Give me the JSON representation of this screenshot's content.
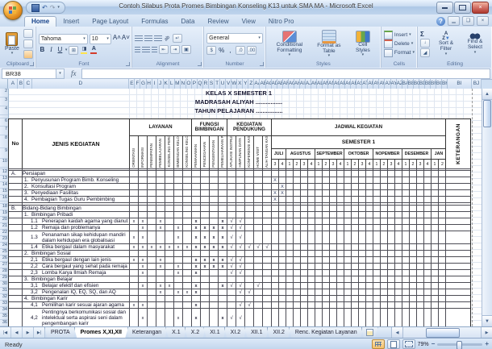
{
  "colors": {
    "close_red": "#cf6a60",
    "grid_line": "#dfe6f0",
    "scroll_thumb_border": "#7e97bb",
    "selection_orange": "#f5c06a"
  },
  "window": {
    "title": "Contoh Silabus Prota Promes Bimbingan Konseling  K13 untuk SMA MA  -  Microsoft Excel"
  },
  "ribbon": {
    "tabs": [
      {
        "label": "Home",
        "active": true
      },
      {
        "label": "Insert"
      },
      {
        "label": "Page Layout"
      },
      {
        "label": "Formulas"
      },
      {
        "label": "Data"
      },
      {
        "label": "Review"
      },
      {
        "label": "View"
      },
      {
        "label": "Nitro Pro"
      }
    ],
    "clipboard": {
      "label": "Clipboard",
      "paste": "Paste"
    },
    "font": {
      "label": "Font",
      "family": "Tahoma",
      "size": "10",
      "bold": "B",
      "italic": "I",
      "underline": "U"
    },
    "alignment": {
      "label": "Alignment"
    },
    "number": {
      "label": "Number",
      "format": "General",
      "percent": "%",
      "comma": ","
    },
    "styles": {
      "label": "Styles",
      "conditional": "Conditional Formatting",
      "format_table": "Format as Table",
      "cell_styles": "Cell Styles"
    },
    "cells": {
      "label": "Cells",
      "insert": "Insert",
      "delete": "Delete",
      "format": "Format"
    },
    "editing": {
      "label": "Editing",
      "autosum": "Σ",
      "sort": "Sort & Filter",
      "find": "Find & Select"
    }
  },
  "formula_bar": {
    "name_box": "BR38",
    "fx": "fx"
  },
  "columns": [
    "A",
    "B",
    "C",
    "D",
    "E",
    "F",
    "G",
    "H",
    "I",
    "J",
    "K",
    "L",
    "M",
    "N",
    "O",
    "P",
    "Q",
    "R",
    "S",
    "T",
    "U",
    "V",
    "W",
    "X",
    "Y",
    "Z",
    "AA",
    "AB",
    "AC",
    "AD",
    "AE",
    "AF",
    "AG",
    "AH",
    "AI",
    "AJ",
    "AK",
    "AL",
    "AM",
    "AN",
    "AO",
    "AP",
    "AQ",
    "AR",
    "AS",
    "AT",
    "AU",
    "AV",
    "AW",
    "AX",
    "AY",
    "AZ",
    "BA",
    "BB",
    "BC",
    "BD",
    "BE",
    "BF",
    "BG",
    "BH",
    "BI",
    "BJ"
  ],
  "sheet": {
    "titles": [
      "KELAS X SEMESTER 1",
      "MADRASAH ALIYAH ................",
      "TAHUN PELAJARAN ................"
    ],
    "row_numbers": [
      "2",
      "3",
      "4",
      "5",
      "6",
      "7",
      "8",
      "9",
      "10",
      "11",
      "12",
      "13",
      "14",
      "15",
      "16",
      "17",
      "18",
      "19",
      "20",
      "21",
      "22",
      "23",
      "24",
      "25",
      "26",
      "27",
      "28",
      "29",
      "30",
      "31",
      "32",
      "33",
      "34",
      "35",
      "36",
      "37",
      "38"
    ],
    "header": {
      "no": "No",
      "jenis": "JENIS KEGIATAN",
      "layanan": {
        "label": "LAYANAN",
        "cols": [
          "ORIENTASI",
          "INFORMASI",
          "PENEMPATAN",
          "PEMBELAJARAN",
          "KONSELING PERORANGAN",
          "BIMBINGAN KELOMPOK",
          "KONSELING KELOMPOK"
        ]
      },
      "fungsi": {
        "label": "FUNGSI BIMBINGAN",
        "cols": [
          "PEMAHAMAN",
          "PENCEGAHAN",
          "PENGENTASAN",
          "PEMELIHARAAN PENGEMBANGAN"
        ]
      },
      "pendukung": {
        "label": "KEGIATAN PENDUKUNG",
        "cols": [
          "APLIKASI INSTRUMENTASI",
          "HIMPUNAN DATA",
          "KONFERENSI KASUS",
          "HOME VISIT",
          "ALIH TANGAN KASUS"
        ]
      },
      "keterangan": "KETERANGAN"
    },
    "jadwal": {
      "label": "JADWAL KEGIATAN",
      "semester": "SEMESTER 1",
      "months": [
        {
          "name": "JULI",
          "weeks": [
            "3",
            "4"
          ]
        },
        {
          "name": "AGUSTUS",
          "weeks": [
            "1",
            "2",
            "3",
            "4"
          ]
        },
        {
          "name": "SEPTEMBER",
          "weeks": [
            "1",
            "2",
            "3",
            "4"
          ]
        },
        {
          "name": "OKTOBER",
          "weeks": [
            "1",
            "2",
            "3",
            "4"
          ]
        },
        {
          "name": "NOPEMBER",
          "weeks": [
            "1",
            "2",
            "3",
            "4"
          ]
        },
        {
          "name": "DESEMBER",
          "weeks": [
            "1",
            "2",
            "3",
            "4"
          ]
        },
        {
          "name": "JAN",
          "weeks": [
            "1",
            "2"
          ]
        }
      ]
    },
    "marks": {
      "L": "x",
      "F": "x",
      "P": "√",
      "J": "X"
    },
    "rows": [
      {
        "r": 11,
        "spacer": true,
        "h": 2
      },
      {
        "r": 12,
        "no": "A.",
        "text": "Persiapan",
        "level": 0
      },
      {
        "r": 13,
        "no": "1.",
        "text": "Penyusunan Program Bimb. Konseling",
        "level": 1,
        "J": [
          1
        ]
      },
      {
        "r": 14,
        "no": "2.",
        "text": "Konsultasi Program",
        "level": 1,
        "J": [
          2
        ]
      },
      {
        "r": 15,
        "no": "3.",
        "text": "Penyediaan Fasilitas",
        "level": 1,
        "J": [
          1,
          2
        ]
      },
      {
        "r": 16,
        "no": "4.",
        "text": "Pembagian Tugas Guru Pembimbing",
        "level": 1,
        "J": [
          1
        ]
      },
      {
        "r": 17,
        "spacer": true,
        "h": 3
      },
      {
        "r": 18,
        "no": "B.",
        "text": "Bidang-Bidang Bimbingan",
        "level": 0
      },
      {
        "r": 19,
        "no": "1.",
        "text": "Bimbingan Pribadi",
        "level": 1
      },
      {
        "r": 20,
        "no": "1.1",
        "text": "Penerapan kaidah agama yang dianut",
        "level": 2,
        "L": [
          1,
          2,
          4
        ],
        "F": [
          1,
          4
        ],
        "P": [
          1,
          2
        ]
      },
      {
        "r": 21,
        "no": "1.2",
        "text": "Remaja dan problemanya",
        "level": 2,
        "L": [
          2,
          4,
          6
        ],
        "F": [
          1,
          2,
          3,
          4
        ],
        "P": [
          1,
          2
        ]
      },
      {
        "r": 22,
        "no": "1.3",
        "text": "Penanaman sikap kehidupan mandiri dalam kehidupan era globalisasi",
        "lines": 2,
        "level": 2,
        "L": [
          1,
          2,
          6
        ],
        "F": [
          1,
          2,
          3,
          4
        ],
        "P": [
          1,
          2
        ]
      },
      {
        "r": 24,
        "no": "1.4",
        "text": "Etika bergaul dalam masyarakat",
        "level": 2,
        "L": [
          1,
          2,
          3,
          4,
          5,
          6,
          7
        ],
        "F": [
          1,
          2,
          3,
          4
        ],
        "P": [
          1,
          2,
          3,
          4,
          5
        ]
      },
      {
        "r": 25,
        "no": "2.",
        "text": "Bimbingan Sosial",
        "level": 1
      },
      {
        "r": 26,
        "no": "2,1",
        "text": "Etika bergaul dengan lain jenis",
        "level": 2,
        "L": [
          1,
          2,
          4
        ],
        "F": [
          1,
          2,
          3,
          4
        ],
        "P": [
          1,
          2
        ]
      },
      {
        "r": 27,
        "no": "2,2",
        "text": "Cara bergaul yang sehat pada remaja",
        "level": 2,
        "L": [
          2,
          4,
          6
        ],
        "F": [
          1,
          2,
          3,
          4
        ],
        "P": [
          1,
          2
        ]
      },
      {
        "r": 28,
        "no": "2,3",
        "text": "Lomba Karya Ilmiah Remaja",
        "level": 2,
        "L": [
          2,
          6
        ],
        "F": [
          1
        ],
        "P": [
          1,
          2
        ]
      },
      {
        "r": 29,
        "no": "3.",
        "text": "Bimbingan Belajar",
        "level": 1
      },
      {
        "r": 30,
        "no": "3,1",
        "text": "Belajar efektif dan efisien",
        "level": 2,
        "L": [
          2,
          4,
          5
        ],
        "F": [
          1,
          4
        ],
        "P": [
          1,
          2,
          4
        ]
      },
      {
        "r": 31,
        "no": "3,2",
        "text": "Pengenalan IQ, EQ, SQ, dan AQ",
        "level": 2,
        "L": [
          4,
          6,
          7
        ],
        "F": [
          1
        ],
        "P": [
          2,
          3
        ]
      },
      {
        "r": 32,
        "no": "4.",
        "text": "Bimbingan Karir",
        "level": 1
      },
      {
        "r": 33,
        "no": "4,1",
        "text": "Pemilihan karir sesuai ajaran agama",
        "level": 2,
        "L": [
          1,
          2
        ],
        "F": [
          1
        ],
        "P": [
          2,
          3
        ]
      },
      {
        "r": 34,
        "no": "4,2",
        "text": "Pentingnya berkomunikasi sosial dan intelektual serta aspirasi seni dalam pengembangan karir",
        "lines": 3,
        "level": 2,
        "L": [
          2,
          6
        ],
        "F": [
          1,
          4
        ],
        "P": [
          1,
          2
        ]
      },
      {
        "r": 37,
        "spacer": true,
        "h": 3
      }
    ]
  },
  "sheet_tabs": {
    "tabs": [
      {
        "label": "PROTA"
      },
      {
        "label": "Promes X,XI,XII",
        "active": true
      },
      {
        "label": "Keterangan"
      },
      {
        "label": "X.1"
      },
      {
        "label": "X.2"
      },
      {
        "label": "XI.1"
      },
      {
        "label": "XI.2"
      },
      {
        "label": "XII.1"
      },
      {
        "label": "XII.2"
      },
      {
        "label": "Renc. Kegiatan Layanan"
      }
    ]
  },
  "status_bar": {
    "mode": "Ready",
    "zoom": "79%"
  }
}
